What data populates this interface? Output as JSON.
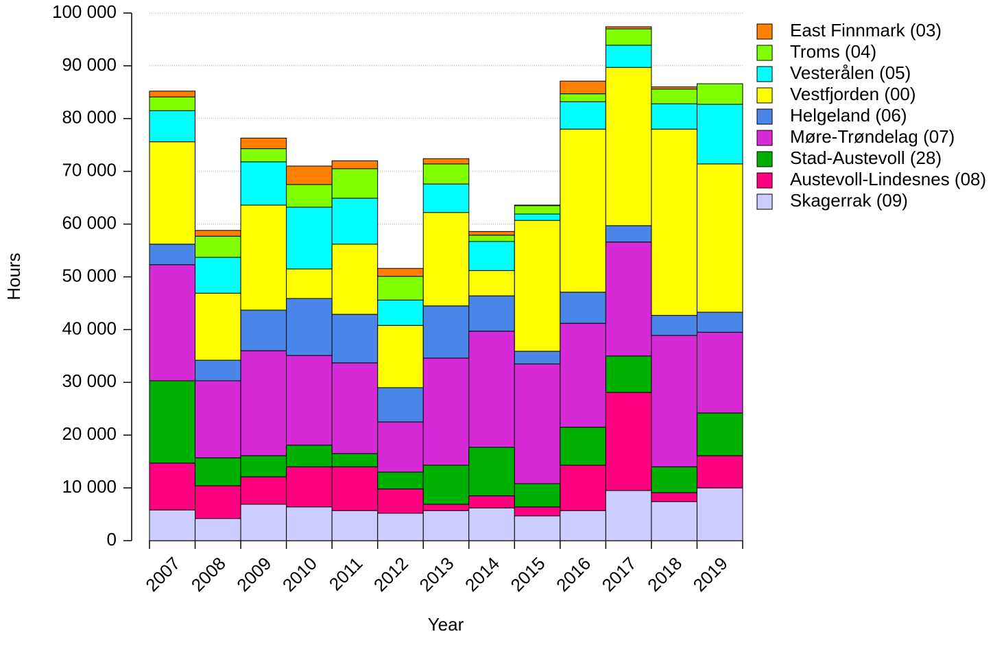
{
  "chart_data": {
    "type": "stacked_bar",
    "x_label": "Year",
    "y_label": "Hours",
    "categories": [
      "2007",
      "2008",
      "2009",
      "2010",
      "2011",
      "2012",
      "2013",
      "2014",
      "2015",
      "2016",
      "2017",
      "2018",
      "2019"
    ],
    "series": [
      {
        "name": "Skagerrak (09)",
        "color": "#ccccff",
        "values": [
          5800,
          4200,
          6900,
          6400,
          5700,
          5200,
          5700,
          6200,
          4700,
          5700,
          9500,
          7400,
          10000
        ]
      },
      {
        "name": "Austevoll-Lindesnes (08)",
        "color": "#ff0080",
        "values": [
          8900,
          6200,
          5200,
          7600,
          8300,
          4600,
          1200,
          2300,
          1700,
          8600,
          18600,
          1700,
          6100
        ]
      },
      {
        "name": "Stad-Austevoll (28)",
        "color": "#00b000",
        "values": [
          15600,
          5300,
          4000,
          4100,
          2500,
          3200,
          7400,
          9200,
          4400,
          7200,
          6900,
          4900,
          8100
        ]
      },
      {
        "name": "Møre-Trøndelag (07)",
        "color": "#d62ad6",
        "values": [
          22000,
          14600,
          19900,
          17000,
          17200,
          9500,
          20300,
          22000,
          22700,
          19700,
          21600,
          24900,
          15300
        ]
      },
      {
        "name": "Helgeland (06)",
        "color": "#4a86e8",
        "values": [
          3900,
          3900,
          7700,
          10800,
          9200,
          6500,
          9900,
          6700,
          2400,
          5900,
          3100,
          3800,
          3800
        ]
      },
      {
        "name": "Vestfjorden (00)",
        "color": "#ffff00",
        "values": [
          19400,
          12700,
          19900,
          5600,
          13300,
          11800,
          17700,
          4800,
          24800,
          30900,
          30000,
          35300,
          28100
        ]
      },
      {
        "name": "Vesterålen (05)",
        "color": "#00ffff",
        "values": [
          5900,
          6800,
          8200,
          11700,
          8700,
          4800,
          5400,
          5500,
          1200,
          5200,
          4200,
          4800,
          11300
        ]
      },
      {
        "name": "Troms (04)",
        "color": "#80ff00",
        "values": [
          2600,
          4000,
          2500,
          4300,
          5600,
          4500,
          3800,
          1200,
          1600,
          1500,
          3100,
          2800,
          3900
        ]
      },
      {
        "name": "East Finnmark (03)",
        "color": "#ff8000",
        "values": [
          1100,
          1100,
          2000,
          3500,
          1500,
          1500,
          1000,
          700,
          100,
          2400,
          400,
          400,
          0
        ]
      }
    ],
    "ylim": [
      0,
      100000
    ],
    "yticks": [
      {
        "value": 0,
        "label": "0"
      },
      {
        "value": 10000,
        "label": "10 000"
      },
      {
        "value": 20000,
        "label": "20 000"
      },
      {
        "value": 30000,
        "label": "30 000"
      },
      {
        "value": 40000,
        "label": "40 000"
      },
      {
        "value": 50000,
        "label": "50 000"
      },
      {
        "value": 60000,
        "label": "60 000"
      },
      {
        "value": 70000,
        "label": "70 000"
      },
      {
        "value": 80000,
        "label": "80 000"
      },
      {
        "value": 90000,
        "label": "90 000"
      },
      {
        "value": 100000,
        "label": "100 000"
      }
    ],
    "grid": true
  }
}
